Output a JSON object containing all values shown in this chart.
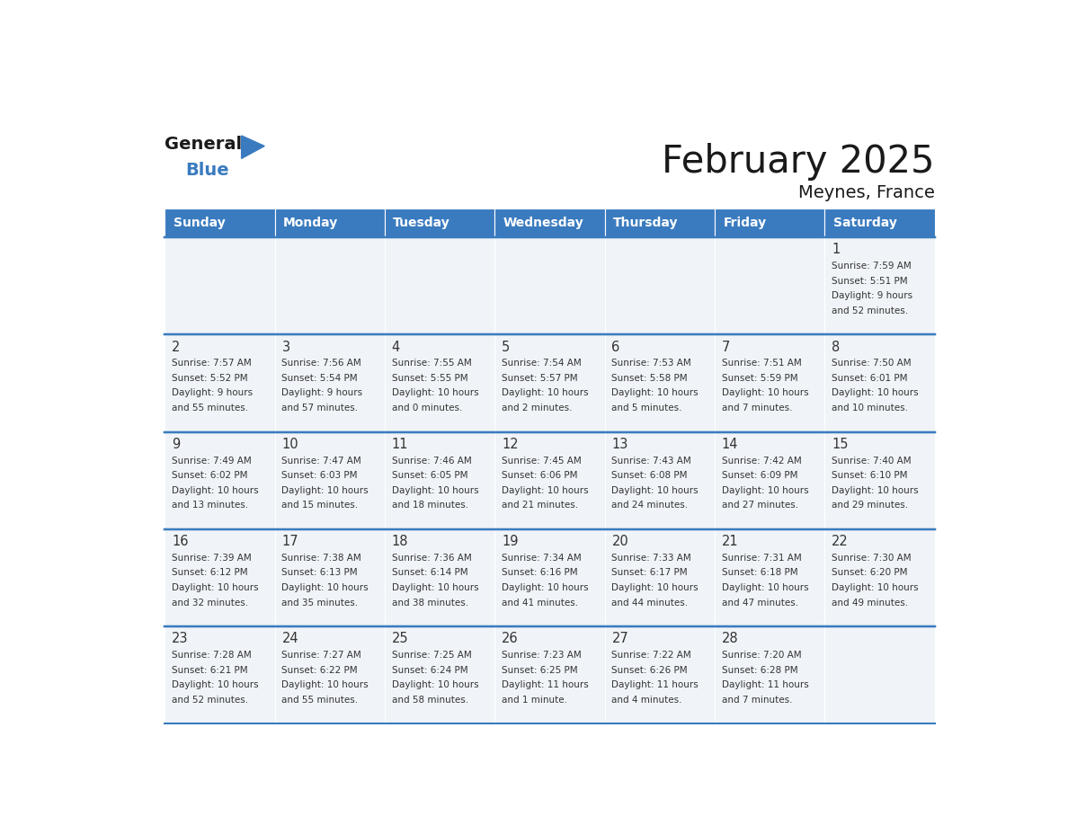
{
  "title": "February 2025",
  "subtitle": "Meynes, France",
  "header_color": "#3a7bbf",
  "header_text_color": "#ffffff",
  "days_of_week": [
    "Sunday",
    "Monday",
    "Tuesday",
    "Wednesday",
    "Thursday",
    "Friday",
    "Saturday"
  ],
  "cell_bg": "#f0f4f8",
  "line_color": "#3a7bbf",
  "day_number_color": "#333333",
  "info_text_color": "#333333",
  "calendar": [
    [
      null,
      null,
      null,
      null,
      null,
      null,
      {
        "day": "1",
        "sunrise": "7:59 AM",
        "sunset": "5:51 PM",
        "daylight_h": "9 hours",
        "daylight_m": "and 52 minutes."
      }
    ],
    [
      {
        "day": "2",
        "sunrise": "7:57 AM",
        "sunset": "5:52 PM",
        "daylight_h": "9 hours",
        "daylight_m": "and 55 minutes."
      },
      {
        "day": "3",
        "sunrise": "7:56 AM",
        "sunset": "5:54 PM",
        "daylight_h": "9 hours",
        "daylight_m": "and 57 minutes."
      },
      {
        "day": "4",
        "sunrise": "7:55 AM",
        "sunset": "5:55 PM",
        "daylight_h": "10 hours",
        "daylight_m": "and 0 minutes."
      },
      {
        "day": "5",
        "sunrise": "7:54 AM",
        "sunset": "5:57 PM",
        "daylight_h": "10 hours",
        "daylight_m": "and 2 minutes."
      },
      {
        "day": "6",
        "sunrise": "7:53 AM",
        "sunset": "5:58 PM",
        "daylight_h": "10 hours",
        "daylight_m": "and 5 minutes."
      },
      {
        "day": "7",
        "sunrise": "7:51 AM",
        "sunset": "5:59 PM",
        "daylight_h": "10 hours",
        "daylight_m": "and 7 minutes."
      },
      {
        "day": "8",
        "sunrise": "7:50 AM",
        "sunset": "6:01 PM",
        "daylight_h": "10 hours",
        "daylight_m": "and 10 minutes."
      }
    ],
    [
      {
        "day": "9",
        "sunrise": "7:49 AM",
        "sunset": "6:02 PM",
        "daylight_h": "10 hours",
        "daylight_m": "and 13 minutes."
      },
      {
        "day": "10",
        "sunrise": "7:47 AM",
        "sunset": "6:03 PM",
        "daylight_h": "10 hours",
        "daylight_m": "and 15 minutes."
      },
      {
        "day": "11",
        "sunrise": "7:46 AM",
        "sunset": "6:05 PM",
        "daylight_h": "10 hours",
        "daylight_m": "and 18 minutes."
      },
      {
        "day": "12",
        "sunrise": "7:45 AM",
        "sunset": "6:06 PM",
        "daylight_h": "10 hours",
        "daylight_m": "and 21 minutes."
      },
      {
        "day": "13",
        "sunrise": "7:43 AM",
        "sunset": "6:08 PM",
        "daylight_h": "10 hours",
        "daylight_m": "and 24 minutes."
      },
      {
        "day": "14",
        "sunrise": "7:42 AM",
        "sunset": "6:09 PM",
        "daylight_h": "10 hours",
        "daylight_m": "and 27 minutes."
      },
      {
        "day": "15",
        "sunrise": "7:40 AM",
        "sunset": "6:10 PM",
        "daylight_h": "10 hours",
        "daylight_m": "and 29 minutes."
      }
    ],
    [
      {
        "day": "16",
        "sunrise": "7:39 AM",
        "sunset": "6:12 PM",
        "daylight_h": "10 hours",
        "daylight_m": "and 32 minutes."
      },
      {
        "day": "17",
        "sunrise": "7:38 AM",
        "sunset": "6:13 PM",
        "daylight_h": "10 hours",
        "daylight_m": "and 35 minutes."
      },
      {
        "day": "18",
        "sunrise": "7:36 AM",
        "sunset": "6:14 PM",
        "daylight_h": "10 hours",
        "daylight_m": "and 38 minutes."
      },
      {
        "day": "19",
        "sunrise": "7:34 AM",
        "sunset": "6:16 PM",
        "daylight_h": "10 hours",
        "daylight_m": "and 41 minutes."
      },
      {
        "day": "20",
        "sunrise": "7:33 AM",
        "sunset": "6:17 PM",
        "daylight_h": "10 hours",
        "daylight_m": "and 44 minutes."
      },
      {
        "day": "21",
        "sunrise": "7:31 AM",
        "sunset": "6:18 PM",
        "daylight_h": "10 hours",
        "daylight_m": "and 47 minutes."
      },
      {
        "day": "22",
        "sunrise": "7:30 AM",
        "sunset": "6:20 PM",
        "daylight_h": "10 hours",
        "daylight_m": "and 49 minutes."
      }
    ],
    [
      {
        "day": "23",
        "sunrise": "7:28 AM",
        "sunset": "6:21 PM",
        "daylight_h": "10 hours",
        "daylight_m": "and 52 minutes."
      },
      {
        "day": "24",
        "sunrise": "7:27 AM",
        "sunset": "6:22 PM",
        "daylight_h": "10 hours",
        "daylight_m": "and 55 minutes."
      },
      {
        "day": "25",
        "sunrise": "7:25 AM",
        "sunset": "6:24 PM",
        "daylight_h": "10 hours",
        "daylight_m": "and 58 minutes."
      },
      {
        "day": "26",
        "sunrise": "7:23 AM",
        "sunset": "6:25 PM",
        "daylight_h": "11 hours",
        "daylight_m": "and 1 minute."
      },
      {
        "day": "27",
        "sunrise": "7:22 AM",
        "sunset": "6:26 PM",
        "daylight_h": "11 hours",
        "daylight_m": "and 4 minutes."
      },
      {
        "day": "28",
        "sunrise": "7:20 AM",
        "sunset": "6:28 PM",
        "daylight_h": "11 hours",
        "daylight_m": "and 7 minutes."
      },
      null
    ]
  ]
}
